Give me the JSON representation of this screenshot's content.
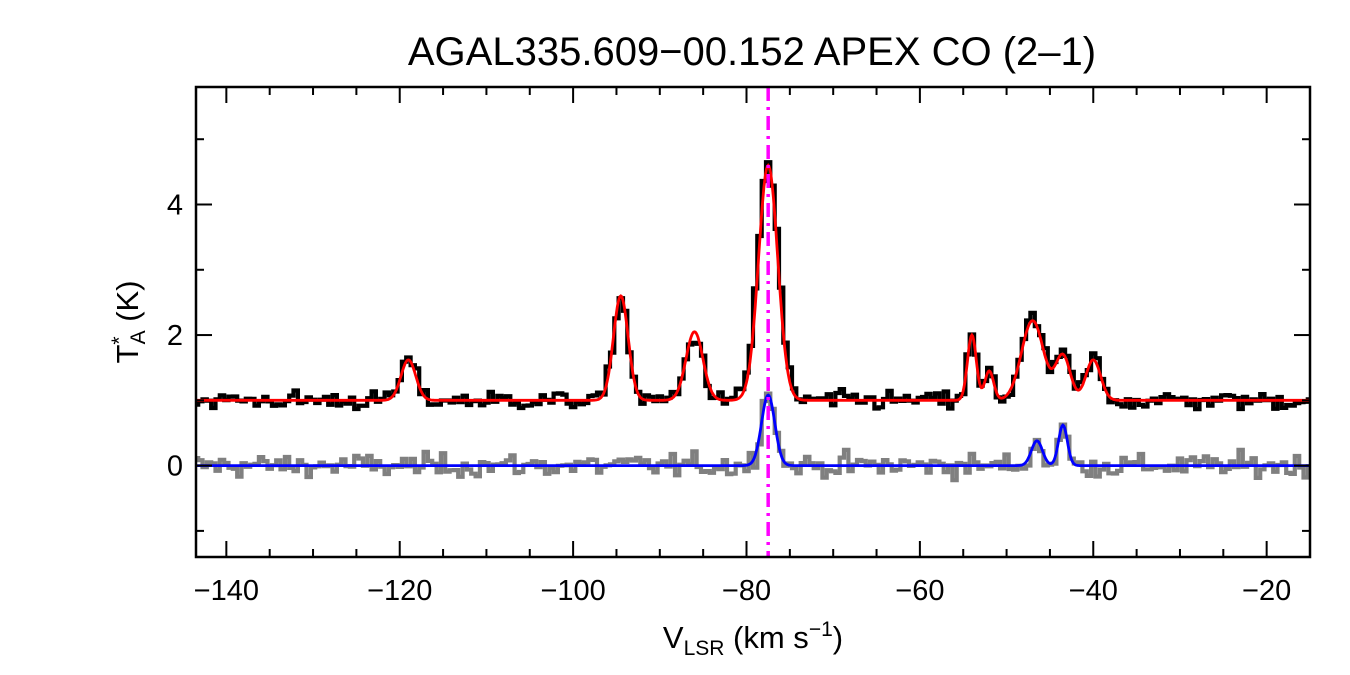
{
  "chart_data": {
    "type": "line",
    "title": "AGAL335.609−00.152  APEX CO (2–1)",
    "xlabel": {
      "main": "V",
      "sub": "LSR",
      "unit_open": " (km s",
      "unit_sup": "−1",
      "unit_close": ")"
    },
    "ylabel": {
      "main": "T",
      "sup": "*",
      "sub": "A",
      "unit": " (K)"
    },
    "xlim": [
      -143.5,
      -15
    ],
    "ylim": [
      -1.4,
      5.8
    ],
    "x_ticks": [
      -140,
      -120,
      -100,
      -80,
      -60,
      -40,
      -20
    ],
    "x_tick_labels": [
      "−140",
      "−120",
      "−100",
      "−80",
      "−60",
      "−40",
      "−20"
    ],
    "y_ticks": [
      0,
      2,
      4
    ],
    "y_tick_labels": [
      "0",
      "2",
      "4"
    ],
    "x_step": 0.5,
    "marker_line": {
      "x": -77.5,
      "color": "#ff00ff",
      "style": "dash-dot"
    },
    "series": [
      {
        "role": "observed spectrum",
        "color": "#000000",
        "baseline": 1.0,
        "noise": 0.13,
        "components": [
          {
            "center": -119,
            "amplitude": 0.65,
            "fwhm": 2.0
          },
          {
            "center": -94.5,
            "amplitude": 1.6,
            "fwhm": 2.0
          },
          {
            "center": -86,
            "amplitude": 1.0,
            "fwhm": 2.3
          },
          {
            "center": -77.5,
            "amplitude": 3.65,
            "fwhm": 2.8
          },
          {
            "center": -54,
            "amplitude": 1.0,
            "fwhm": 1.2
          },
          {
            "center": -52,
            "amplitude": 0.45,
            "fwhm": 1.2
          },
          {
            "center": -47,
            "amplitude": 1.25,
            "fwhm": 3.0
          },
          {
            "center": -43.5,
            "amplitude": 0.7,
            "fwhm": 2.0
          },
          {
            "center": -40,
            "amplitude": 0.65,
            "fwhm": 2.0
          }
        ]
      },
      {
        "role": "fit to observed spectrum",
        "color": "#ff0000",
        "baseline": 1.0,
        "components": [
          {
            "center": -119,
            "amplitude": 0.62,
            "fwhm": 2.0
          },
          {
            "center": -94.5,
            "amplitude": 1.6,
            "fwhm": 2.0
          },
          {
            "center": -86,
            "amplitude": 1.05,
            "fwhm": 2.3
          },
          {
            "center": -77.5,
            "amplitude": 3.6,
            "fwhm": 2.6
          },
          {
            "center": -54,
            "amplitude": 1.0,
            "fwhm": 1.2
          },
          {
            "center": -52,
            "amplitude": 0.45,
            "fwhm": 1.2
          },
          {
            "center": -47,
            "amplitude": 1.22,
            "fwhm": 3.0
          },
          {
            "center": -43.5,
            "amplitude": 0.68,
            "fwhm": 2.0
          },
          {
            "center": -40,
            "amplitude": 0.62,
            "fwhm": 2.0
          }
        ]
      },
      {
        "role": "residual spectrum",
        "color": "#808080",
        "baseline": 0.0,
        "noise": 0.16,
        "components": [
          {
            "center": -77.5,
            "amplitude": 1.2,
            "fwhm": 1.8
          },
          {
            "center": -46.5,
            "amplitude": 0.35,
            "fwhm": 1.5
          },
          {
            "center": -43.5,
            "amplitude": 0.6,
            "fwhm": 1.2
          }
        ]
      },
      {
        "role": "fit to residual spectrum",
        "color": "#0000ff",
        "baseline": 0.0,
        "components": [
          {
            "center": -77.5,
            "amplitude": 1.08,
            "fwhm": 1.8
          },
          {
            "center": -46.5,
            "amplitude": 0.38,
            "fwhm": 1.5
          },
          {
            "center": -43.5,
            "amplitude": 0.62,
            "fwhm": 1.2
          }
        ]
      }
    ]
  }
}
